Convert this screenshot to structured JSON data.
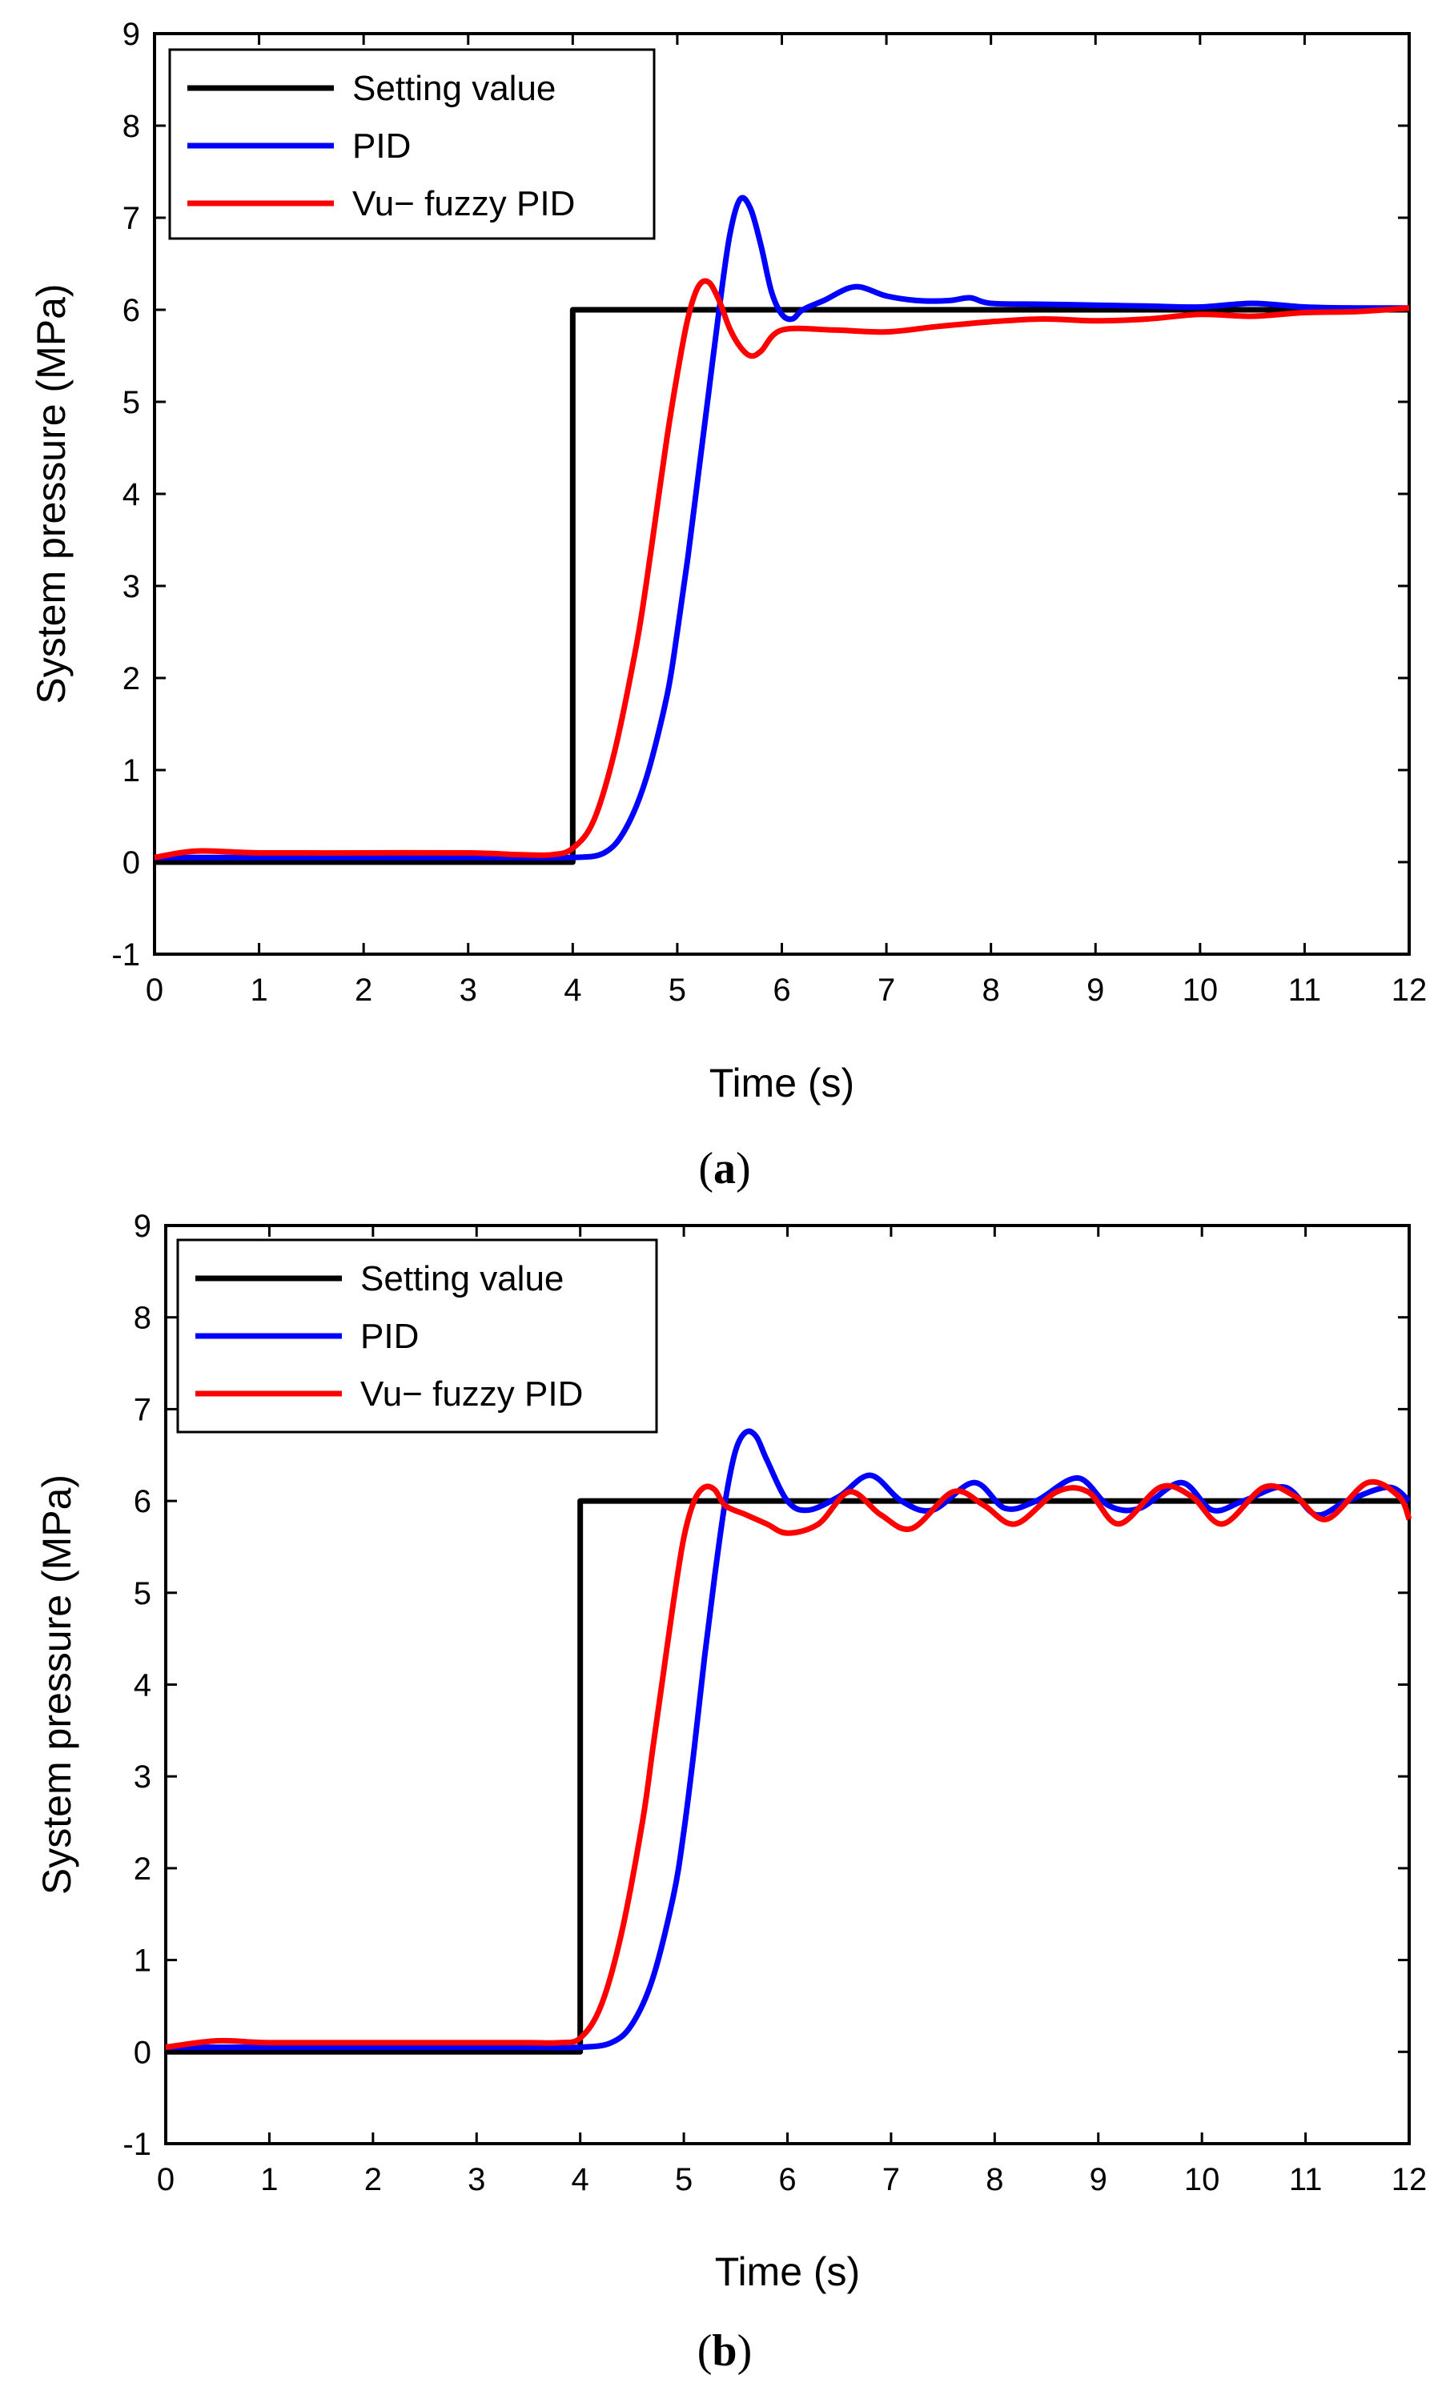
{
  "chart_data": [
    {
      "id": "a",
      "type": "line",
      "caption_letter": "a",
      "xlabel": "Time (s)",
      "ylabel": "System pressure (MPa)",
      "xlim": [
        0,
        12
      ],
      "ylim": [
        -1,
        9
      ],
      "xticks": [
        0,
        1,
        2,
        3,
        4,
        5,
        6,
        7,
        8,
        9,
        10,
        11,
        12
      ],
      "yticks": [
        -1,
        0,
        1,
        2,
        3,
        4,
        5,
        6,
        7,
        8,
        9
      ],
      "legend_position": "top-left",
      "series": [
        {
          "name": "Setting value",
          "color": "#000000",
          "x": [
            0,
            4,
            4,
            12
          ],
          "y": [
            0,
            0,
            6,
            6
          ]
        },
        {
          "name": "PID",
          "color": "#0000ff",
          "x": [
            0,
            1,
            2,
            3,
            3.5,
            4,
            4.3,
            4.5,
            4.7,
            4.9,
            5.0,
            5.1,
            5.2,
            5.3,
            5.4,
            5.5,
            5.6,
            5.7,
            5.8,
            5.9,
            6.0,
            6.1,
            6.2,
            6.4,
            6.7,
            7.0,
            7.3,
            7.6,
            7.8,
            8.0,
            8.5,
            9.0,
            9.5,
            10.0,
            10.5,
            11.0,
            11.5,
            12.0
          ],
          "y": [
            0.05,
            0.05,
            0.05,
            0.05,
            0.05,
            0.05,
            0.1,
            0.35,
            0.9,
            1.8,
            2.5,
            3.3,
            4.2,
            5.1,
            6.0,
            6.8,
            7.2,
            7.1,
            6.7,
            6.2,
            5.95,
            5.9,
            6.0,
            6.1,
            6.25,
            6.15,
            6.1,
            6.1,
            6.13,
            6.07,
            6.06,
            6.05,
            6.04,
            6.03,
            6.07,
            6.03,
            6.02,
            6.02
          ]
        },
        {
          "name": "Vu− fuzzy PID",
          "color": "#ff0000",
          "x": [
            0,
            0.4,
            1,
            2,
            3,
            3.5,
            3.8,
            4.0,
            4.2,
            4.4,
            4.6,
            4.7,
            4.8,
            4.9,
            5.0,
            5.1,
            5.2,
            5.3,
            5.4,
            5.5,
            5.6,
            5.7,
            5.8,
            6.0,
            6.5,
            7.0,
            7.5,
            8.0,
            8.5,
            9.0,
            9.5,
            10.0,
            10.5,
            11.0,
            11.5,
            12.0
          ],
          "y": [
            0.05,
            0.12,
            0.1,
            0.1,
            0.1,
            0.08,
            0.08,
            0.15,
            0.45,
            1.2,
            2.3,
            3.0,
            3.8,
            4.6,
            5.3,
            5.9,
            6.25,
            6.3,
            6.1,
            5.8,
            5.6,
            5.5,
            5.55,
            5.78,
            5.78,
            5.76,
            5.82,
            5.87,
            5.9,
            5.88,
            5.9,
            5.95,
            5.93,
            5.97,
            5.98,
            6.02
          ]
        }
      ]
    },
    {
      "id": "b",
      "type": "line",
      "caption_letter": "b",
      "xlabel": "Time (s)",
      "ylabel": "System pressure (MPa)",
      "xlim": [
        0,
        12
      ],
      "ylim": [
        -1,
        9
      ],
      "xticks": [
        0,
        1,
        2,
        3,
        4,
        5,
        6,
        7,
        8,
        9,
        10,
        11,
        12
      ],
      "yticks": [
        -1,
        0,
        1,
        2,
        3,
        4,
        5,
        6,
        7,
        8,
        9
      ],
      "legend_position": "top-left",
      "series": [
        {
          "name": "Setting value",
          "color": "#000000",
          "x": [
            0,
            4,
            4,
            12
          ],
          "y": [
            0,
            0,
            6,
            6
          ]
        },
        {
          "name": "PID",
          "color": "#0000ff",
          "x": [
            0,
            1,
            2,
            3,
            3.5,
            4,
            4.3,
            4.5,
            4.7,
            4.9,
            5.0,
            5.1,
            5.2,
            5.3,
            5.4,
            5.5,
            5.6,
            5.7,
            5.8,
            6.0,
            6.2,
            6.5,
            6.8,
            7.1,
            7.4,
            7.8,
            8.1,
            8.4,
            8.8,
            9.1,
            9.4,
            9.8,
            10.1,
            10.4,
            10.8,
            11.1,
            11.4,
            11.8,
            12.0
          ],
          "y": [
            0.05,
            0.05,
            0.05,
            0.05,
            0.05,
            0.05,
            0.1,
            0.3,
            0.8,
            1.7,
            2.4,
            3.3,
            4.3,
            5.2,
            6.0,
            6.55,
            6.75,
            6.7,
            6.45,
            6.0,
            5.9,
            6.05,
            6.28,
            6.0,
            5.9,
            6.2,
            5.92,
            6.0,
            6.25,
            5.95,
            5.92,
            6.2,
            5.9,
            6.0,
            6.15,
            5.85,
            6.0,
            6.15,
            6.0
          ]
        },
        {
          "name": "Vu− fuzzy PID",
          "color": "#ff0000",
          "x": [
            0,
            0.5,
            1,
            2,
            3,
            3.5,
            3.8,
            4.0,
            4.2,
            4.4,
            4.6,
            4.7,
            4.8,
            4.9,
            5.0,
            5.1,
            5.2,
            5.3,
            5.4,
            5.6,
            5.8,
            6.0,
            6.3,
            6.6,
            6.9,
            7.2,
            7.6,
            7.9,
            8.2,
            8.6,
            8.9,
            9.2,
            9.6,
            9.9,
            10.2,
            10.6,
            10.9,
            11.2,
            11.6,
            11.9,
            12.0
          ],
          "y": [
            0.05,
            0.12,
            0.1,
            0.1,
            0.1,
            0.1,
            0.1,
            0.15,
            0.5,
            1.3,
            2.5,
            3.3,
            4.1,
            4.9,
            5.6,
            6.0,
            6.15,
            6.12,
            5.95,
            5.85,
            5.75,
            5.65,
            5.75,
            6.1,
            5.85,
            5.7,
            6.1,
            5.95,
            5.75,
            6.1,
            6.1,
            5.75,
            6.15,
            6.05,
            5.75,
            6.15,
            6.05,
            5.8,
            6.2,
            6.05,
            5.8
          ]
        }
      ]
    }
  ]
}
